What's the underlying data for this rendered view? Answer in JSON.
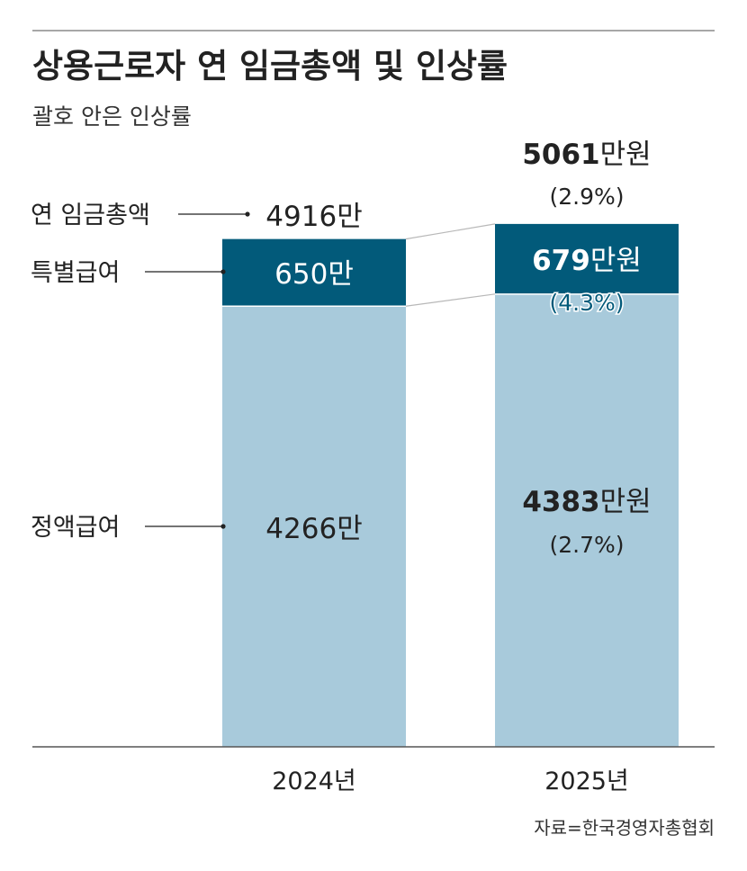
{
  "title": "상용근로자 연 임금총액 및 인상률",
  "subtitle": "괄호 안은 인상률",
  "source": "자료=한국경영자총협회",
  "side_labels": {
    "total": "연 임금총액",
    "special": "특별급여",
    "regular": "정액급여"
  },
  "colors": {
    "regular": "#a8cadb",
    "special": "#025a7a",
    "rule": "#8a8a8a",
    "text": "#222222"
  },
  "chart_data": {
    "type": "bar",
    "stacked": true,
    "title": "상용근로자 연 임금총액 및 인상률",
    "subtitle": "괄호 안은 인상률",
    "unit": "만원",
    "categories": [
      "2024년",
      "2025년"
    ],
    "series": [
      {
        "name": "정액급여",
        "values": [
          4266,
          4383
        ],
        "labels": [
          {
            "num": "4266",
            "unit": "만"
          },
          {
            "num": "4383",
            "unit": "만원"
          }
        ],
        "growth": [
          "",
          "(2.7%)"
        ]
      },
      {
        "name": "특별급여",
        "values": [
          650,
          679
        ],
        "labels": [
          {
            "num": "650",
            "unit": "만"
          },
          {
            "num": "679",
            "unit": "만원"
          }
        ],
        "growth": [
          "",
          "(4.3%)"
        ]
      }
    ],
    "totals": {
      "name": "연 임금총액",
      "values": [
        4916,
        5061
      ],
      "labels": [
        {
          "num": "4916",
          "unit": "만"
        },
        {
          "num": "5061",
          "unit": "만원"
        }
      ],
      "growth": [
        "",
        "(2.9%)"
      ]
    }
  }
}
